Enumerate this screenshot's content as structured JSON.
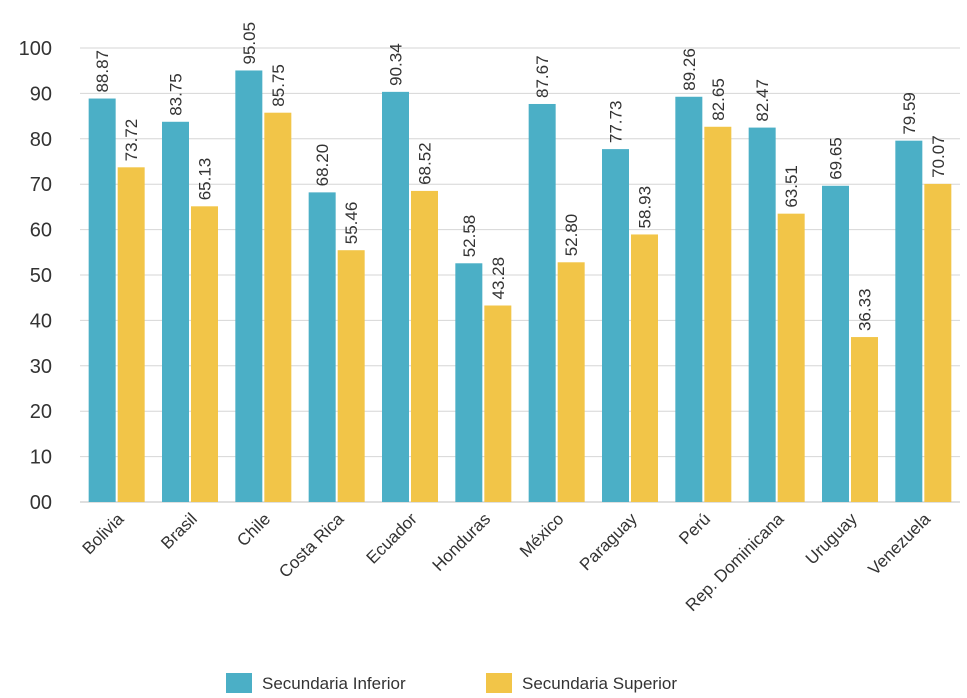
{
  "chart_data": {
    "type": "bar",
    "title": "",
    "xlabel": "",
    "ylabel": "",
    "ylim": [
      0,
      100
    ],
    "ytick_labels": [
      "00",
      "10",
      "20",
      "30",
      "40",
      "50",
      "60",
      "70",
      "80",
      "90",
      "100"
    ],
    "grid": true,
    "legend_position": "bottom",
    "categories": [
      "Bolivia",
      "Brasil",
      "Chile",
      "Costa Rica",
      "Ecuador",
      "Honduras",
      "México",
      "Paraguay",
      "Perú",
      "Rep. Dominicana",
      "Uruguay",
      "Venezuela"
    ],
    "series": [
      {
        "name": "Secundaria Inferior",
        "color": "#4bafc6",
        "values": [
          88.87,
          83.75,
          95.05,
          68.2,
          90.34,
          52.58,
          87.67,
          77.73,
          89.26,
          82.47,
          69.65,
          79.59
        ],
        "labels": [
          "88.87",
          "83.75",
          "95.05",
          "68.20",
          "90.34",
          "52.58",
          "87.67",
          "77.73",
          "89.26",
          "82.47",
          "69.65",
          "79.59"
        ]
      },
      {
        "name": "Secundaria Superior",
        "color": "#f2c548",
        "values": [
          73.72,
          65.13,
          85.75,
          55.46,
          68.52,
          43.28,
          52.8,
          58.93,
          82.65,
          63.51,
          36.33,
          70.07
        ],
        "labels": [
          "73.72",
          "65.13",
          "85.75",
          "55.46",
          "68.52",
          "43.28",
          "52.80",
          "58.93",
          "82.65",
          "63.51",
          "36.33",
          "70.07"
        ]
      }
    ]
  }
}
